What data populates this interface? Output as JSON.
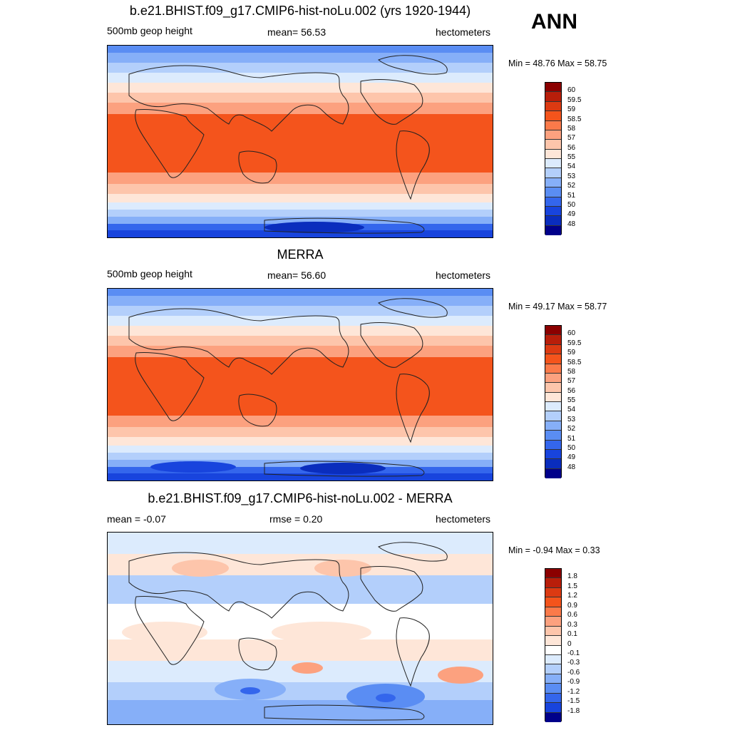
{
  "season_label": "ANN",
  "chart_data": [
    {
      "type": "heatmap",
      "title": "b.e21.BHIST.f09_g17.CMIP6-hist-noLu.002 (yrs 1920-1944)",
      "left_label": "500mb geop height",
      "stat_label": "mean=  56.53",
      "units": "hectometers",
      "min_max": "Min =  48.76 Max =  58.75",
      "colorbar_labels": [
        "60",
        "59.5",
        "59",
        "58.5",
        "58",
        "57",
        "56",
        "55",
        "54",
        "53",
        "52",
        "51",
        "50",
        "49",
        "48"
      ],
      "colors": [
        "#8b0000",
        "#b81e0a",
        "#dc3a12",
        "#f4541c",
        "#fb7a4a",
        "#fca17f",
        "#fdc5ab",
        "#fee6d8",
        "#dcebfd",
        "#b3cffb",
        "#86aff8",
        "#5a8df3",
        "#3466ec",
        "#1844dd",
        "#0a2dbd",
        "#00008a"
      ]
    },
    {
      "type": "heatmap",
      "title": "MERRA",
      "left_label": "500mb geop height",
      "stat_label": "mean=  56.60",
      "units": "hectometers",
      "min_max": "Min =  49.17 Max =  58.77",
      "colorbar_labels": [
        "60",
        "59.5",
        "59",
        "58.5",
        "58",
        "57",
        "56",
        "55",
        "54",
        "53",
        "52",
        "51",
        "50",
        "49",
        "48"
      ],
      "colors": [
        "#8b0000",
        "#b81e0a",
        "#dc3a12",
        "#f4541c",
        "#fb7a4a",
        "#fca17f",
        "#fdc5ab",
        "#fee6d8",
        "#dcebfd",
        "#b3cffb",
        "#86aff8",
        "#5a8df3",
        "#3466ec",
        "#1844dd",
        "#0a2dbd",
        "#00008a"
      ]
    },
    {
      "type": "heatmap",
      "title": "b.e21.BHIST.f09_g17.CMIP6-hist-noLu.002 - MERRA",
      "left_label": "mean =  -0.07",
      "stat_label": "rmse =   0.20",
      "units": "hectometers",
      "min_max": "Min =  -0.94 Max =   0.33",
      "colorbar_labels": [
        "1.8",
        "1.5",
        "1.2",
        "0.9",
        "0.6",
        "0.3",
        "0.1",
        "0",
        "-0.1",
        "-0.3",
        "-0.6",
        "-0.9",
        "-1.2",
        "-1.5",
        "-1.8"
      ],
      "colors": [
        "#8b0000",
        "#b81e0a",
        "#dc3a12",
        "#f4541c",
        "#fb7a4a",
        "#fca17f",
        "#fdc5ab",
        "#fee6d8",
        "#ffffff",
        "#dcebfd",
        "#b3cffb",
        "#86aff8",
        "#5a8df3",
        "#3466ec",
        "#1844dd",
        "#00008a"
      ]
    }
  ]
}
